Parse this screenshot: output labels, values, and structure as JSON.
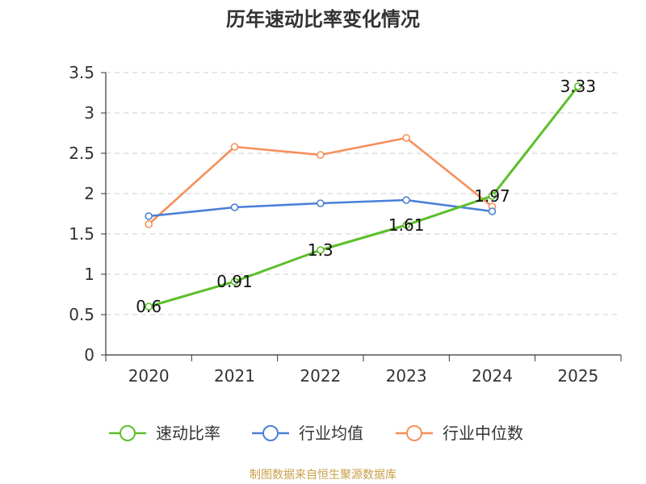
{
  "chart_data": {
    "type": "line",
    "title": "历年速动比率变化情况",
    "categories": [
      "2020",
      "2021",
      "2022",
      "2023",
      "2024",
      "2025"
    ],
    "ylim": [
      0,
      3.5
    ],
    "yticks": [
      "0",
      "0.5",
      "1",
      "1.5",
      "2",
      "2.5",
      "3",
      "3.5"
    ],
    "grid": true,
    "legend_position": "bottom",
    "series": [
      {
        "name": "速动比率",
        "color": "#5cbf2a",
        "values": [
          0.6,
          0.91,
          1.3,
          1.61,
          1.97,
          3.33
        ],
        "labels": [
          "0.6",
          "0.91",
          "1.3",
          "1.61",
          "1.97",
          "3.33"
        ]
      },
      {
        "name": "行业均值",
        "color": "#4a7fd8",
        "values": [
          1.72,
          1.83,
          1.88,
          1.92,
          1.78,
          null
        ]
      },
      {
        "name": "行业中位数",
        "color": "#f68f5a",
        "values": [
          1.62,
          2.58,
          2.48,
          2.69,
          1.84,
          null
        ]
      }
    ]
  },
  "source": "制图数据来自恒生聚源数据库"
}
